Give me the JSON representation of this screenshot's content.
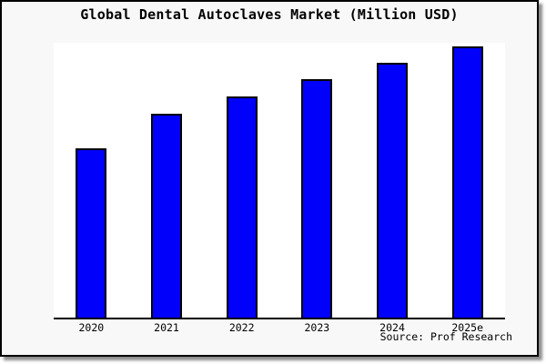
{
  "window": {
    "title": "Global Dental Autoclaves Market (Million USD)",
    "source_caption": "Source: Prof Research"
  },
  "colors": {
    "frame_border": "#000000",
    "figure_background": "#f8f8f8",
    "plot_background": "#ffffff",
    "bar_fill": "#0000fb",
    "bar_border": "#000000",
    "axis_line": "#000000",
    "text": "#000000"
  },
  "chart_data": {
    "type": "bar",
    "title": "Global Dental Autoclaves Market (Million USD)",
    "categories": [
      "2020",
      "2021",
      "2022",
      "2023",
      "2024",
      "2025e"
    ],
    "values": [
      62.0,
      74.3,
      80.5,
      86.8,
      92.7,
      98.7
    ],
    "value_unit": "percent of plot height (no y-axis ticks, gridlines or data labels shown; values estimated from bar pixel heights)",
    "xlabel": "",
    "ylabel": "",
    "ylim": [
      0,
      100
    ],
    "grid": false,
    "legend": false,
    "bar_color": "#0000fb",
    "bar_edge_color": "#000000",
    "source": "Source: Prof Research"
  }
}
